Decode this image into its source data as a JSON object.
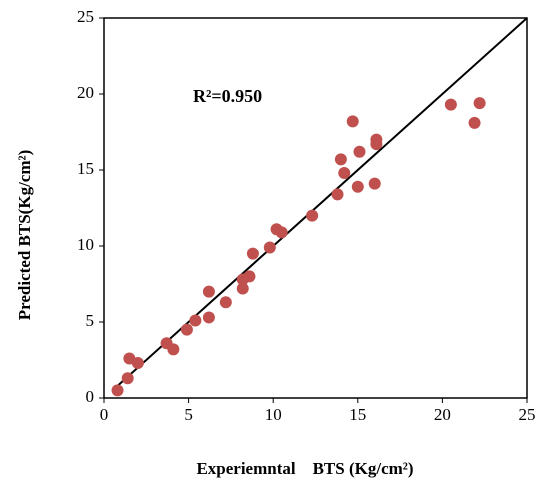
{
  "chart_data": {
    "type": "scatter",
    "x_label": "Experiemntal    BTS (Kg/cm²)",
    "y_label": "Predicted BTS(Kg/cm²)",
    "annotation": "R²=0.950",
    "xlim": [
      0,
      25
    ],
    "ylim": [
      0,
      25
    ],
    "xticks": [
      0,
      5,
      10,
      15,
      20,
      25
    ],
    "yticks": [
      0,
      5,
      10,
      15,
      20,
      25
    ],
    "series": [
      {
        "color": "#c0504d",
        "x": [
          0.8,
          1.4,
          1.5,
          2.0,
          3.7,
          4.1,
          4.9,
          5.4,
          6.2,
          6.2,
          7.2,
          8.2,
          8.2,
          8.6,
          8.8,
          9.8,
          10.2,
          10.5,
          12.3,
          13.8,
          14.0,
          14.2,
          14.7,
          15.0,
          15.1,
          16.0,
          16.1,
          16.1,
          20.5,
          21.9,
          22.2
        ],
        "values": [
          0.5,
          1.3,
          2.6,
          2.3,
          3.6,
          3.2,
          4.5,
          5.1,
          5.3,
          7.0,
          6.3,
          7.2,
          7.8,
          8.0,
          9.5,
          9.9,
          11.1,
          10.9,
          12.0,
          13.4,
          15.7,
          14.8,
          18.2,
          13.9,
          16.2,
          14.1,
          16.7,
          17.0,
          19.3,
          18.1,
          19.4
        ]
      }
    ],
    "fit_line": {
      "x": [
        0.8,
        25
      ],
      "y": [
        0.8,
        25
      ],
      "color": "#000000"
    }
  }
}
